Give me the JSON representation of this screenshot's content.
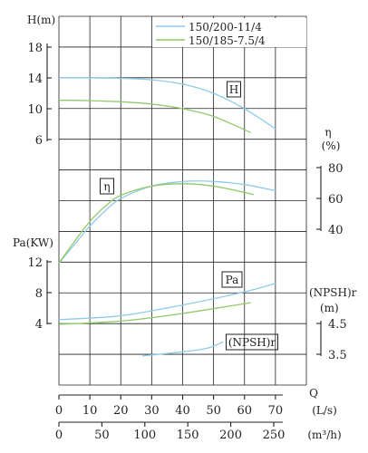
{
  "chart_data": {
    "type": "line",
    "legend": {
      "placement": "top-right",
      "entries": [
        {
          "name": "150/200-11/4",
          "color": "#8fcbe8"
        },
        {
          "name": "150/185-7.5/4",
          "color": "#92c86a"
        }
      ]
    },
    "x_axes": {
      "flow_ls": {
        "label": "Q",
        "unit_label": "(L/s)",
        "ticks": [
          "0",
          "10",
          "20",
          "30",
          "40",
          "50",
          "60",
          "70"
        ],
        "range": [
          0,
          75
        ]
      },
      "flow_m3h": {
        "unit_label": "(m³/h)",
        "ticks": [
          "0",
          "50",
          "100",
          "150",
          "200",
          "250"
        ],
        "range": [
          0,
          270
        ]
      }
    },
    "y_axes": {
      "H": {
        "label": "H(m)",
        "ticks": [
          "6",
          "10",
          "14",
          "18"
        ],
        "range": [
          6,
          18
        ],
        "curve_tag": "H"
      },
      "eta": {
        "label": "η",
        "unit_label": "(%)",
        "ticks": [
          "40",
          "60",
          "80"
        ],
        "range": [
          40,
          80
        ],
        "curve_tag": "η"
      },
      "Pa": {
        "label": "Pa(KW)",
        "ticks": [
          "4",
          "8",
          "12"
        ],
        "range": [
          4,
          12
        ],
        "curve_tag": "Pa"
      },
      "NPSHr": {
        "label": "(NPSH)r",
        "unit_label": "(m)",
        "ticks": [
          "3.5",
          "4.5"
        ],
        "range": [
          3.5,
          4.5
        ],
        "curve_tag": "(NPSH)r"
      }
    },
    "series": [
      {
        "name": "150/200-11/4",
        "quantity": "H",
        "color": "#8fcbe8",
        "x": [
          0,
          10,
          20,
          30,
          40,
          50,
          60,
          70
        ],
        "y": [
          14.0,
          14.0,
          13.95,
          13.75,
          13.2,
          12.0,
          10.0,
          7.4
        ]
      },
      {
        "name": "150/185-7.5/4",
        "quantity": "H",
        "color": "#92c86a",
        "x": [
          0,
          10,
          20,
          30,
          40,
          50,
          62
        ],
        "y": [
          11.1,
          11.05,
          10.9,
          10.6,
          10.0,
          9.0,
          6.9
        ]
      },
      {
        "name": "150/200-11/4",
        "quantity": "η",
        "color": "#8fcbe8",
        "x": [
          0,
          5,
          10,
          15,
          20,
          30,
          40,
          50,
          60,
          70
        ],
        "y": [
          18,
          30,
          42,
          52,
          60,
          68,
          71,
          71,
          69,
          65
        ]
      },
      {
        "name": "150/185-7.5/4",
        "quantity": "η",
        "color": "#92c86a",
        "x": [
          0,
          5,
          10,
          15,
          20,
          30,
          40,
          50,
          63
        ],
        "y": [
          18,
          32,
          45,
          55,
          62,
          68,
          69.5,
          68,
          62.5
        ]
      },
      {
        "name": "150/200-11/4",
        "quantity": "Pa",
        "color": "#8fcbe8",
        "x": [
          0,
          20,
          40,
          60,
          70
        ],
        "y": [
          4.5,
          5.0,
          6.4,
          8.1,
          9.2
        ]
      },
      {
        "name": "150/185-7.5/4",
        "quantity": "Pa",
        "color": "#92c86a",
        "x": [
          0,
          20,
          40,
          62
        ],
        "y": [
          3.9,
          4.3,
          5.3,
          6.7
        ]
      },
      {
        "name": "150/200-11/4",
        "quantity": "(NPSH)r",
        "color": "#8fcbe8",
        "x": [
          27,
          40,
          48,
          53
        ],
        "y": [
          3.45,
          3.58,
          3.7,
          3.9
        ]
      }
    ]
  }
}
